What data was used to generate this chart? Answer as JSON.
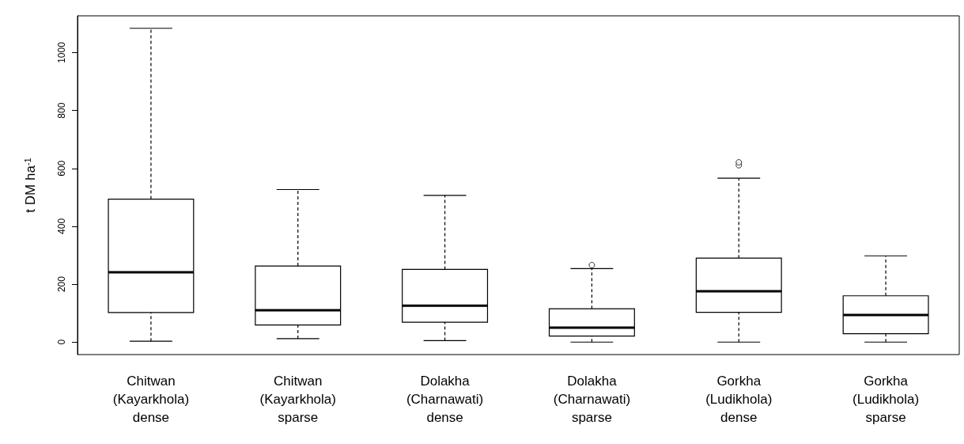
{
  "chart_data": {
    "type": "box",
    "ylabel": "t DM ha$^{-1}$",
    "categories": [
      "Chitwan\n(Kayarkhola)\ndense",
      "Chitwan\n(Kayarkhola)\nsparse",
      "Dolakha\n(Charnawati)\ndense",
      "Dolakha\n(Charnawati)\nsparse",
      "Gorkha\n(Ludikhola)\ndense",
      "Gorkha\n(Ludikhola)\nsparse"
    ],
    "boxes": [
      {
        "low": 3,
        "q1": 102,
        "median": 241,
        "q3": 494,
        "high": 1084
      },
      {
        "low": 12,
        "q1": 59,
        "median": 110,
        "q3": 263,
        "high": 527
      },
      {
        "low": 5,
        "q1": 69,
        "median": 126,
        "q3": 251,
        "high": 507
      },
      {
        "low": 0,
        "q1": 21,
        "median": 50,
        "q3": 115,
        "high": 254,
        "outliers": [
          266
        ]
      },
      {
        "low": 0,
        "q1": 103,
        "median": 176,
        "q3": 290,
        "high": 566,
        "outliers": [
          611,
          621
        ]
      },
      {
        "low": 0,
        "q1": 29,
        "median": 94,
        "q3": 160,
        "high": 298
      }
    ],
    "ylim": [
      -43,
      1127
    ],
    "yticks": [
      0,
      200,
      400,
      600,
      800,
      1000
    ],
    "grid": false,
    "legend": false
  }
}
